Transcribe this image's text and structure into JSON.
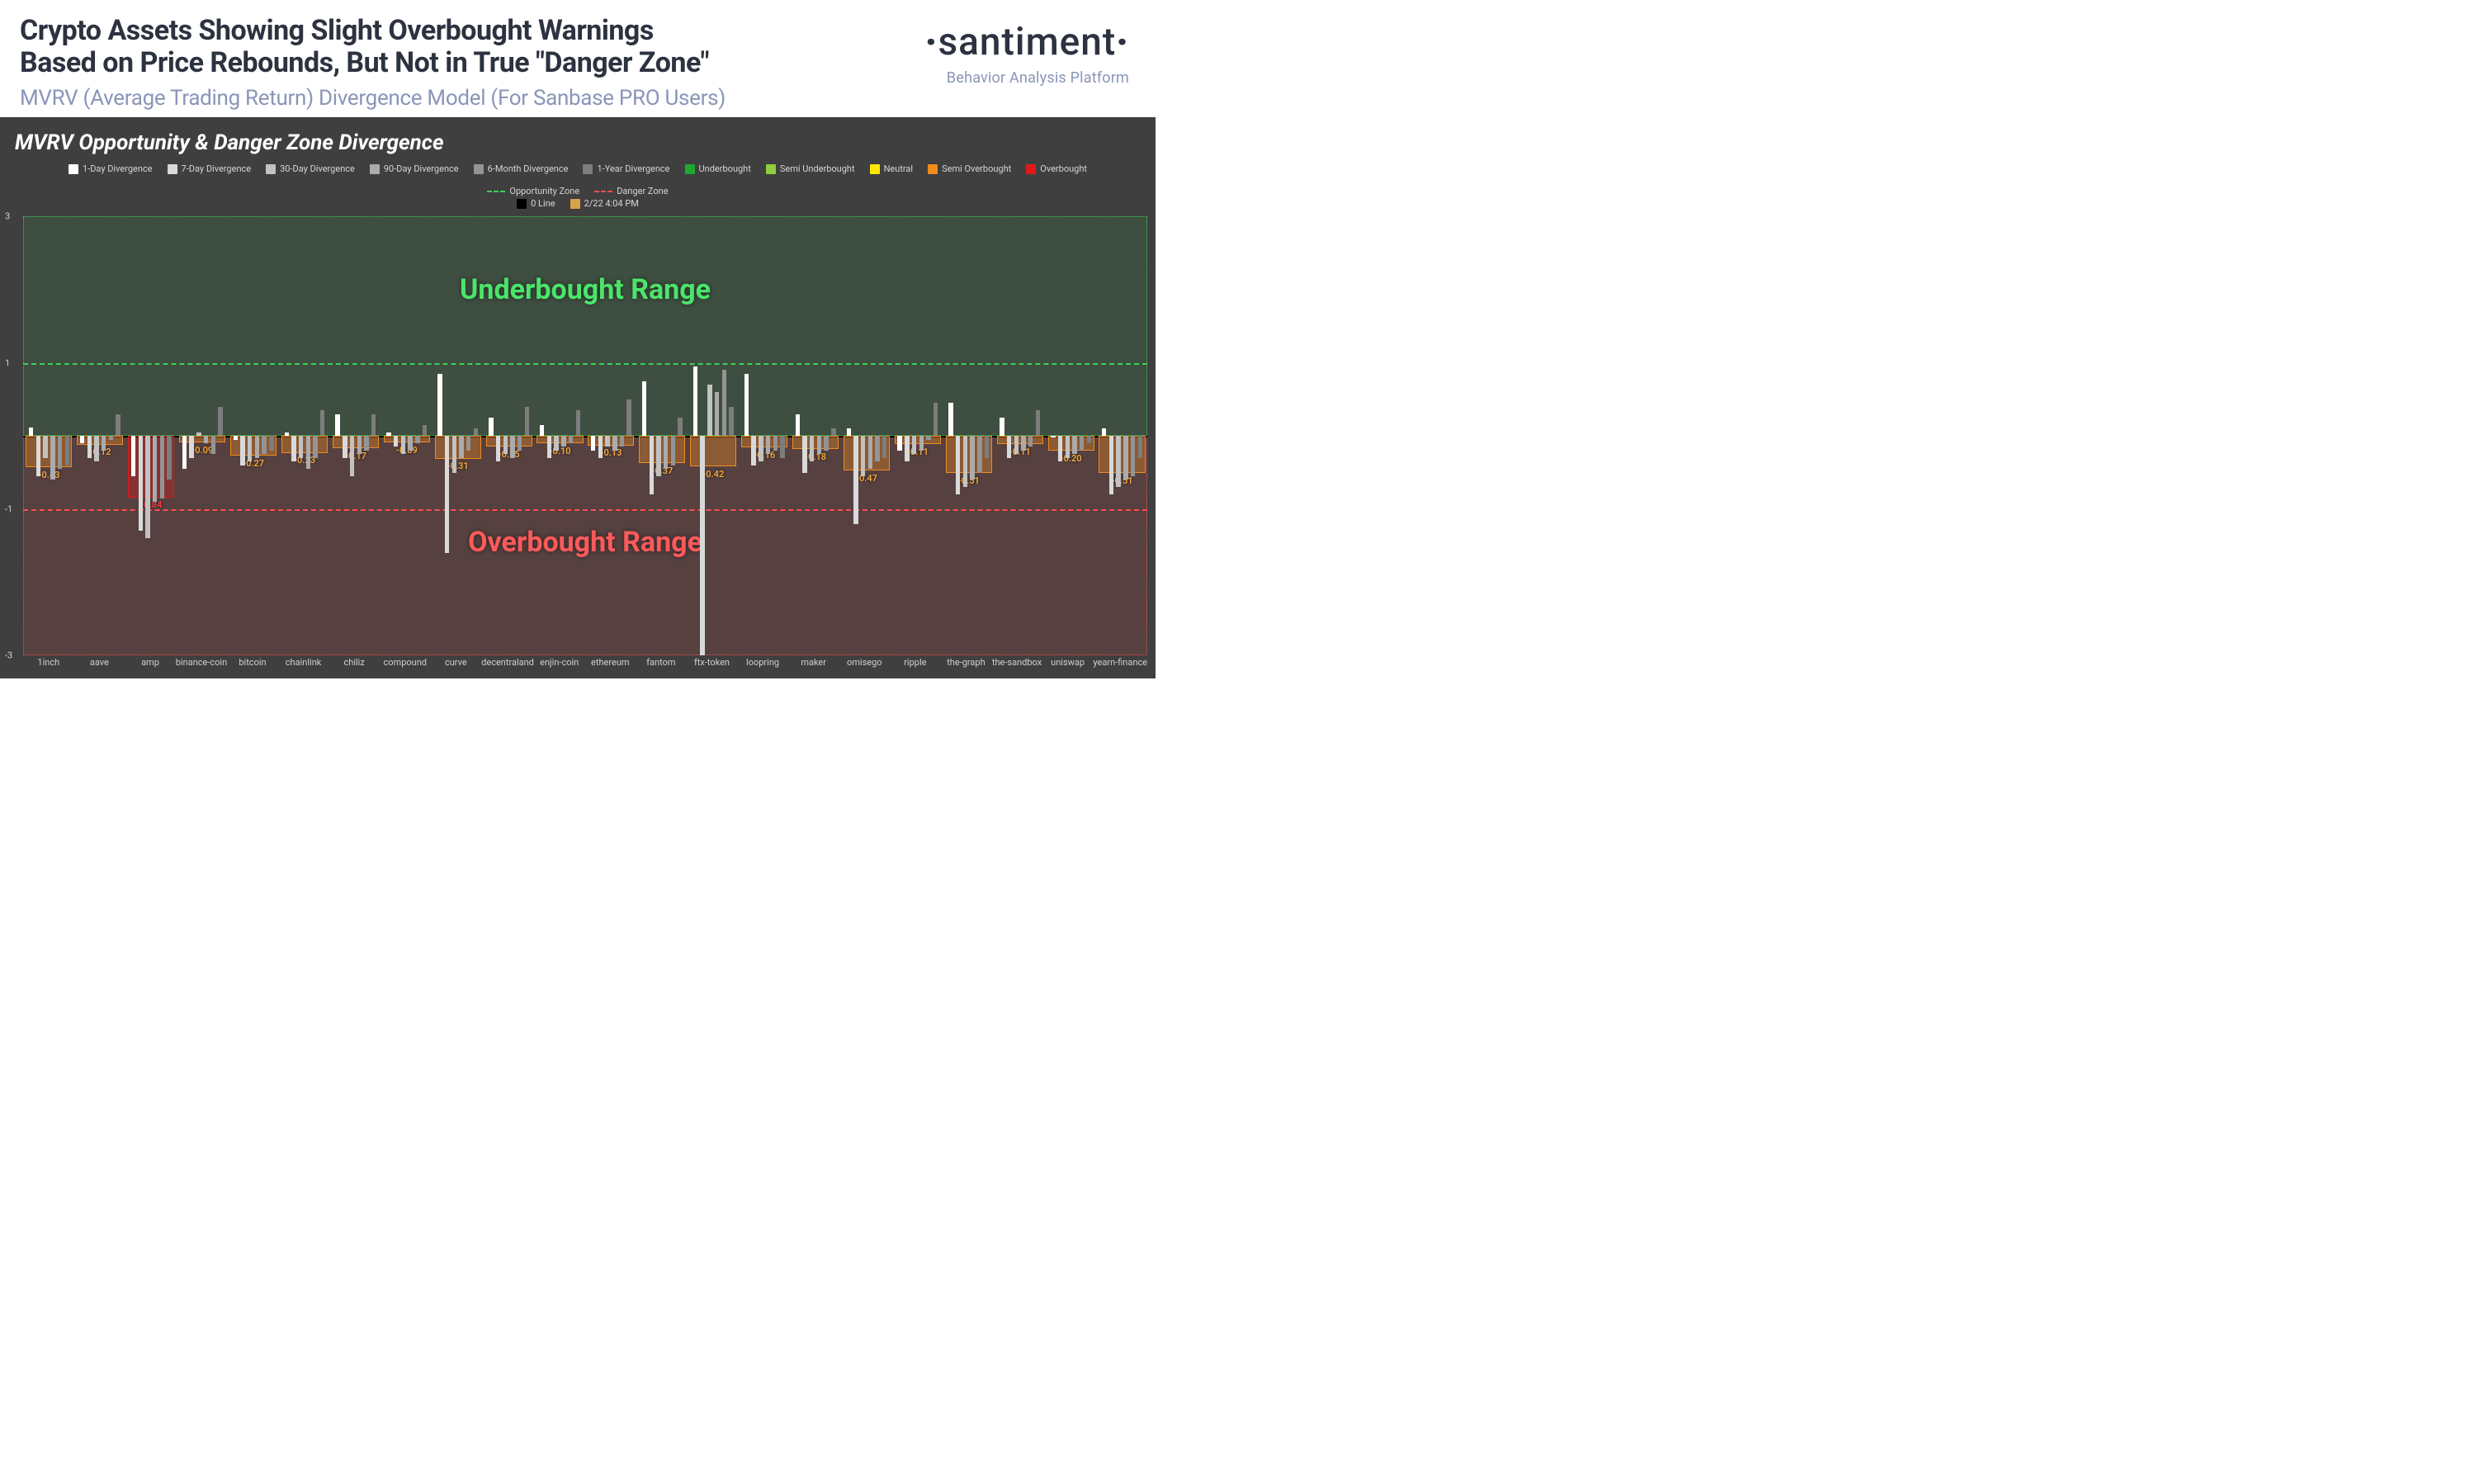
{
  "header": {
    "title_line1": "Crypto Assets Showing Slight Overbought Warnings",
    "title_line2": "Based on Price Rebounds, But Not in True \"Danger Zone\"",
    "subtitle": "MVRV (Average Trading Return) Divergence Model (For Sanbase PRO Users)"
  },
  "brand": {
    "name": "santiment",
    "tagline": "Behavior Analysis Platform"
  },
  "chart": {
    "title": "MVRV Opportunity & Danger Zone Divergence",
    "background": "#3f3f3f",
    "y": {
      "min": -3,
      "max": 3,
      "ticks": [
        3,
        1,
        -1,
        -3
      ]
    },
    "opportunity_line": {
      "value": 1,
      "color": "#39d353",
      "label": "Opportunity Zone"
    },
    "danger_line": {
      "value": -1,
      "color": "#ff4d4d",
      "label": "Danger Zone"
    },
    "zero_line_color": "#000000",
    "underbought_zone": {
      "from": 0,
      "to": 3,
      "fill": "rgba(57,211,83,0.10)",
      "border": "#39d353",
      "label": "Underbought Range",
      "label_color": "#4be56a"
    },
    "overbought_zone": {
      "from": -3,
      "to": 0,
      "fill": "rgba(255,77,77,0.12)",
      "border": "#ff4d4d",
      "label": "Overbought Range",
      "label_color": "#ff5a5a"
    },
    "legend": {
      "series": [
        {
          "label": "1-Day Divergence",
          "color": "#ffffff"
        },
        {
          "label": "7-Day Divergence",
          "color": "#d9d9d9"
        },
        {
          "label": "30-Day Divergence",
          "color": "#c2c2c2"
        },
        {
          "label": "90-Day Divergence",
          "color": "#ababab"
        },
        {
          "label": "6-Month Divergence",
          "color": "#949494"
        },
        {
          "label": "1-Year Divergence",
          "color": "#7d7d7d"
        }
      ],
      "status": [
        {
          "label": "Underbought",
          "color": "#1fa82e"
        },
        {
          "label": "Semi Underbought",
          "color": "#8ecf3e"
        },
        {
          "label": "Neutral",
          "color": "#ffe600"
        },
        {
          "label": "Semi Overbought",
          "color": "#f08c1e"
        },
        {
          "label": "Overbought",
          "color": "#e11919"
        }
      ],
      "lines": [
        {
          "label": "Opportunity Zone",
          "color": "#39d353"
        },
        {
          "label": "Danger Zone",
          "color": "#ff4d4d"
        }
      ],
      "extra": [
        {
          "label": "0 Line",
          "color": "#000000"
        },
        {
          "label": "2/22 4:04 PM",
          "color": "#d6a24a"
        }
      ]
    },
    "bar_colors": [
      "#ffffff",
      "#d9d9d9",
      "#c2c2c2",
      "#ababab",
      "#949494",
      "#7d7d7d"
    ],
    "status_colors": {
      "overbought": {
        "border": "#e11919",
        "fill": "rgba(225,25,25,0.35)",
        "text": "#ff3b3b"
      },
      "semi_overbought": {
        "border": "#f08c1e",
        "fill": "rgba(240,140,30,0.35)",
        "text": "#f3a93a"
      },
      "neutral": {
        "border": "#ffe600",
        "fill": "rgba(255,230,0,0.30)",
        "text": "#ffe94a"
      },
      "semi_underbought": {
        "border": "#8ecf3e",
        "fill": "rgba(142,207,62,0.30)",
        "text": "#a5e055"
      },
      "underbought": {
        "border": "#1fa82e",
        "fill": "rgba(31,168,46,0.30)",
        "text": "#35c244"
      }
    },
    "assets": [
      {
        "name": "1inch",
        "avg": -0.43,
        "status": "semi_overbought",
        "bars": [
          0.12,
          -0.55,
          -0.3,
          -0.6,
          -0.45,
          -0.4
        ]
      },
      {
        "name": "aave",
        "avg": -0.12,
        "status": "semi_overbought",
        "bars": [
          -0.1,
          -0.3,
          -0.35,
          -0.2,
          -0.05,
          0.3
        ]
      },
      {
        "name": "amp",
        "avg": -0.84,
        "status": "overbought",
        "bars": [
          -0.55,
          -1.3,
          -1.4,
          -0.9,
          -0.85,
          -0.6
        ]
      },
      {
        "name": "binance-coin",
        "avg": -0.09,
        "status": "semi_overbought",
        "bars": [
          -0.45,
          -0.3,
          0.05,
          -0.1,
          -0.25,
          0.4
        ]
      },
      {
        "name": "bitcoin",
        "avg": -0.27,
        "status": "semi_overbought",
        "bars": [
          -0.05,
          -0.4,
          -0.35,
          -0.3,
          -0.25,
          -0.2
        ]
      },
      {
        "name": "chainlink",
        "avg": -0.23,
        "status": "semi_overbought",
        "bars": [
          0.05,
          -0.35,
          -0.3,
          -0.45,
          -0.3,
          0.35
        ]
      },
      {
        "name": "chiliz",
        "avg": -0.17,
        "status": "semi_overbought",
        "bars": [
          0.3,
          -0.3,
          -0.55,
          -0.25,
          -0.2,
          0.3
        ]
      },
      {
        "name": "compound",
        "avg": -0.09,
        "status": "semi_overbought",
        "bars": [
          0.05,
          -0.15,
          -0.25,
          -0.2,
          -0.1,
          0.15
        ]
      },
      {
        "name": "curve",
        "avg": -0.31,
        "status": "semi_overbought",
        "bars": [
          0.85,
          -1.6,
          -0.5,
          -0.3,
          -0.2,
          0.1
        ]
      },
      {
        "name": "decentraland",
        "avg": -0.15,
        "status": "semi_overbought",
        "bars": [
          0.25,
          -0.35,
          -0.25,
          -0.3,
          -0.2,
          0.4
        ]
      },
      {
        "name": "enjin-coin",
        "avg": -0.1,
        "status": "semi_overbought",
        "bars": [
          0.15,
          -0.3,
          -0.2,
          -0.15,
          -0.1,
          0.35
        ]
      },
      {
        "name": "ethereum",
        "avg": -0.13,
        "status": "semi_overbought",
        "bars": [
          -0.2,
          -0.3,
          -0.15,
          -0.2,
          -0.15,
          0.5
        ]
      },
      {
        "name": "fantom",
        "avg": -0.37,
        "status": "semi_overbought",
        "bars": [
          0.75,
          -0.8,
          -0.55,
          -0.45,
          -0.4,
          0.25
        ]
      },
      {
        "name": "ftx-token",
        "avg": -0.42,
        "status": "semi_overbought",
        "bars": [
          0.95,
          -3.0,
          0.7,
          0.6,
          0.9,
          0.4
        ]
      },
      {
        "name": "loopring",
        "avg": -0.16,
        "status": "semi_overbought",
        "bars": [
          0.85,
          -0.4,
          -0.35,
          -0.25,
          -0.2,
          -0.3
        ]
      },
      {
        "name": "maker",
        "avg": -0.18,
        "status": "semi_overbought",
        "bars": [
          0.3,
          -0.5,
          -0.35,
          -0.25,
          -0.2,
          0.1
        ]
      },
      {
        "name": "omisego",
        "avg": -0.47,
        "status": "semi_overbought",
        "bars": [
          0.1,
          -1.2,
          -0.55,
          -0.45,
          -0.35,
          -0.3
        ]
      },
      {
        "name": "ripple",
        "avg": -0.11,
        "status": "semi_overbought",
        "bars": [
          -0.2,
          -0.35,
          -0.25,
          -0.2,
          -0.05,
          0.45
        ]
      },
      {
        "name": "the-graph",
        "avg": -0.51,
        "status": "semi_overbought",
        "bars": [
          0.45,
          -0.8,
          -0.7,
          -0.6,
          -0.5,
          -0.3
        ]
      },
      {
        "name": "the-sandbox",
        "avg": -0.11,
        "status": "semi_overbought",
        "bars": [
          0.25,
          -0.3,
          -0.25,
          -0.2,
          -0.15,
          0.35
        ]
      },
      {
        "name": "uniswap",
        "avg": -0.2,
        "status": "semi_overbought",
        "bars": [
          0.0,
          -0.35,
          -0.3,
          -0.25,
          -0.2,
          -0.1
        ]
      },
      {
        "name": "yearn-finance",
        "avg": -0.51,
        "status": "semi_overbought",
        "bars": [
          0.1,
          -0.8,
          -0.7,
          -0.6,
          -0.55,
          -0.3
        ]
      }
    ]
  }
}
